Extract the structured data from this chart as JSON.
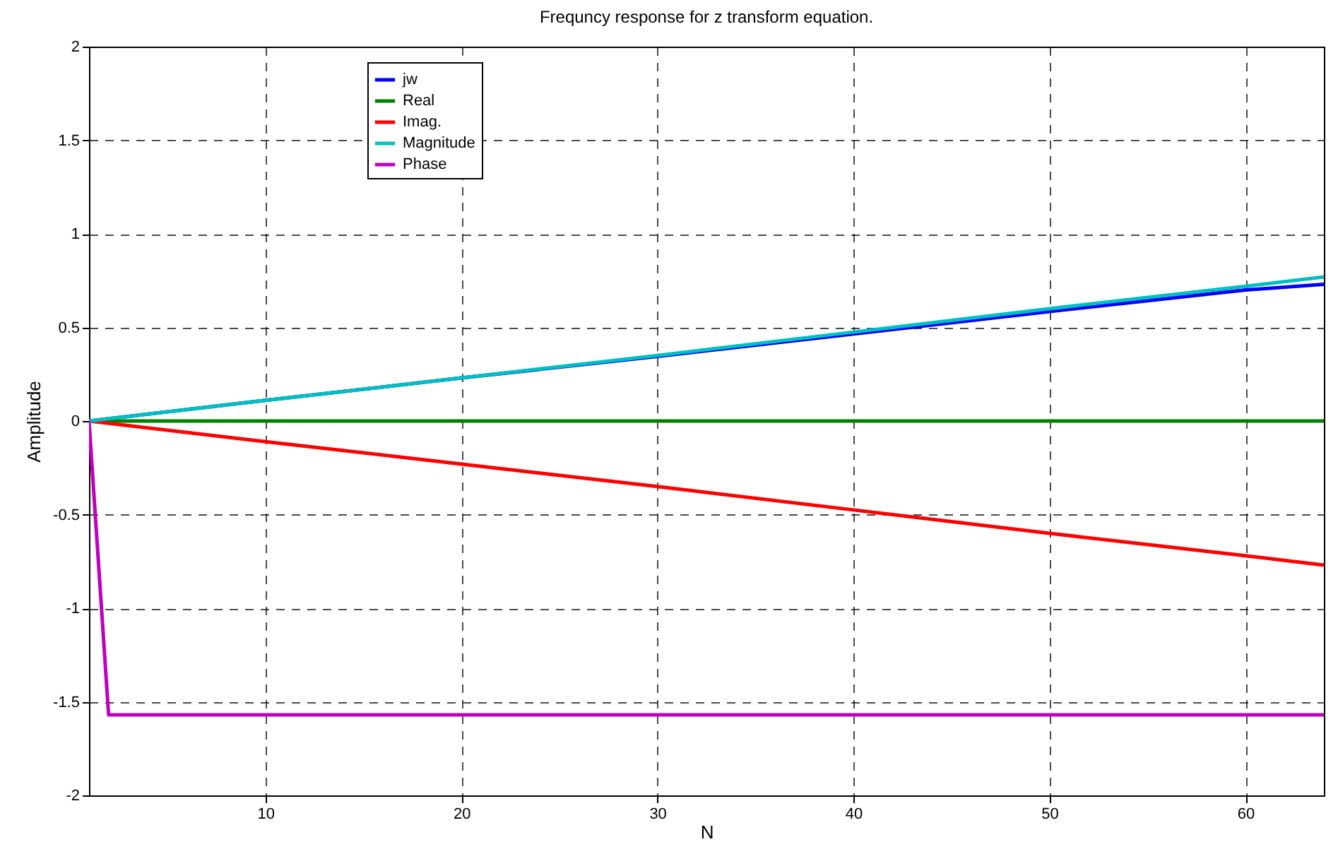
{
  "chart_data": {
    "type": "line",
    "title": "Frequncy response for z transform equation.",
    "xlabel": "N",
    "ylabel": "Amplitude",
    "x": [
      1,
      10,
      20,
      30,
      40,
      50,
      60,
      64
    ],
    "series": [
      {
        "name": "jw",
        "color": "#0000ff",
        "values": [
          0,
          0.11,
          0.23,
          0.345,
          0.465,
          0.585,
          0.7,
          0.73
        ]
      },
      {
        "name": "Real",
        "color": "#008000",
        "values": [
          0,
          0,
          0,
          0,
          0,
          0,
          0,
          0
        ]
      },
      {
        "name": "Imag.",
        "color": "#ff0000",
        "values": [
          0,
          -0.11,
          -0.23,
          -0.35,
          -0.475,
          -0.6,
          -0.72,
          -0.77
        ]
      },
      {
        "name": "Magnitude",
        "color": "#00bfbf",
        "values": [
          0,
          0.11,
          0.23,
          0.35,
          0.475,
          0.6,
          0.72,
          0.77
        ]
      },
      {
        "name": "Phase",
        "color": "#bf00bf",
        "x": [
          1,
          2,
          64
        ],
        "values": [
          0,
          -1.57,
          -1.57
        ]
      }
    ],
    "xlim": [
      1,
      64
    ],
    "xticks": [
      10,
      20,
      30,
      40,
      50,
      60
    ],
    "ylim": [
      -2,
      2
    ],
    "yticks": [
      -2,
      -1.5,
      -1,
      -0.5,
      0,
      0.5,
      1,
      1.5,
      2
    ],
    "grid": true,
    "legend": "top left",
    "line_style": "solid",
    "marker": "none"
  }
}
